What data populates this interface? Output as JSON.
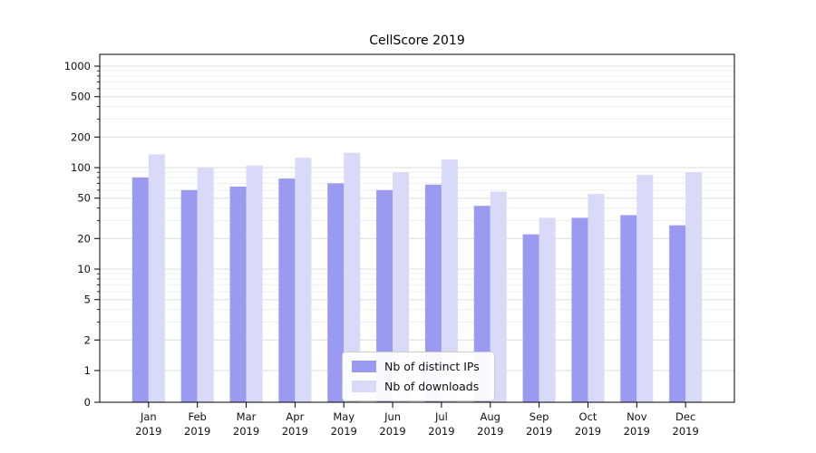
{
  "chart_data": {
    "type": "bar",
    "title": "CellScore 2019",
    "categories": [
      "Jan",
      "Feb",
      "Mar",
      "Apr",
      "May",
      "Jun",
      "Jul",
      "Aug",
      "Sep",
      "Oct",
      "Nov",
      "Dec"
    ],
    "year_label": "2019",
    "series": [
      {
        "name": "Nb of distinct IPs",
        "color": "#9a9af0",
        "values": [
          80,
          60,
          65,
          78,
          70,
          60,
          68,
          42,
          22,
          32,
          34,
          27
        ]
      },
      {
        "name": "Nb of downloads",
        "color": "#d9d9f8",
        "values": [
          135,
          100,
          105,
          125,
          140,
          90,
          120,
          58,
          32,
          55,
          85,
          90
        ]
      }
    ],
    "yticks": [
      0,
      1,
      2,
      5,
      10,
      20,
      50,
      100,
      200,
      500,
      1000
    ],
    "yscale": "symlog",
    "ylim": [
      0,
      1000
    ],
    "xlabel": "",
    "ylabel": "",
    "grid": "both",
    "legend_position": "lower center"
  }
}
